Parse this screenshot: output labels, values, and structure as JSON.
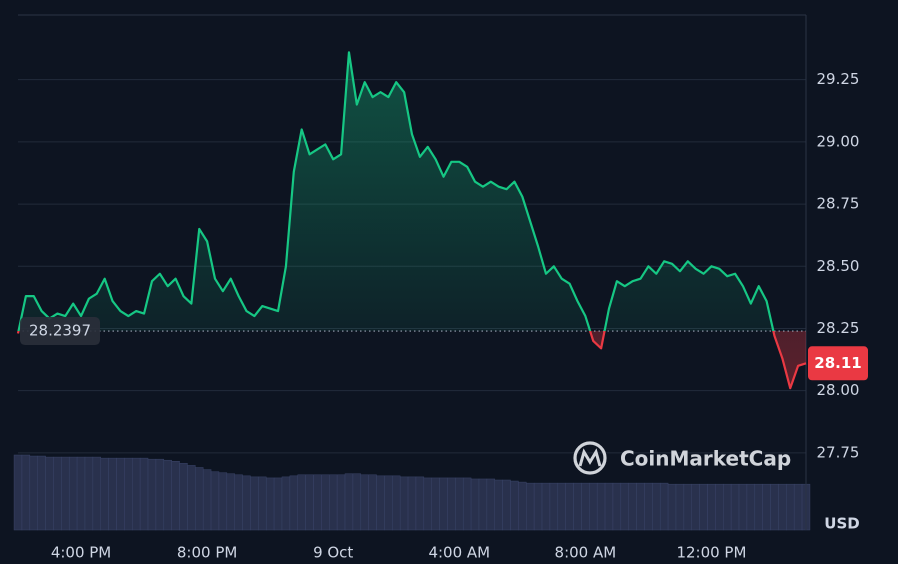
{
  "chart_data": {
    "type": "line",
    "categories": [
      null,
      null,
      null,
      null,
      null,
      null,
      null,
      null,
      "4:00 PM",
      null,
      null,
      null,
      null,
      null,
      null,
      null,
      null,
      null,
      null,
      null,
      null,
      null,
      null,
      null,
      "8:00 PM",
      null,
      null,
      null,
      null,
      null,
      null,
      null,
      null,
      null,
      null,
      null,
      null,
      null,
      null,
      null,
      "9 Oct",
      null,
      null,
      null,
      null,
      null,
      null,
      null,
      null,
      null,
      null,
      null,
      null,
      null,
      null,
      null,
      "4:00 AM",
      null,
      null,
      null,
      null,
      null,
      null,
      null,
      null,
      null,
      null,
      null,
      null,
      null,
      null,
      null,
      "8:00 AM",
      null,
      null,
      null,
      null,
      null,
      null,
      null,
      null,
      null,
      null,
      null,
      null,
      null,
      null,
      null,
      "12:00 PM",
      null,
      null,
      null,
      null,
      null,
      null,
      null,
      null,
      null,
      null,
      null,
      null
    ],
    "series": [
      {
        "color": "#16c784",
        "down_color": "#ea3943",
        "values": [
          28.23,
          28.38,
          28.38,
          28.32,
          28.29,
          28.31,
          28.3,
          28.35,
          28.3,
          28.37,
          28.39,
          28.45,
          28.36,
          28.32,
          28.3,
          28.32,
          28.31,
          28.44,
          28.47,
          28.42,
          28.45,
          28.38,
          28.35,
          28.65,
          28.6,
          28.45,
          28.4,
          28.45,
          28.38,
          28.32,
          28.3,
          28.34,
          28.33,
          28.32,
          28.5,
          28.88,
          29.05,
          28.95,
          28.97,
          28.99,
          28.93,
          28.95,
          29.36,
          29.15,
          29.24,
          29.18,
          29.2,
          29.18,
          29.24,
          29.2,
          29.03,
          28.94,
          28.98,
          28.93,
          28.86,
          28.92,
          28.92,
          28.9,
          28.84,
          28.82,
          28.84,
          28.82,
          28.81,
          28.84,
          28.78,
          28.68,
          28.58,
          28.47,
          28.5,
          28.45,
          28.43,
          28.36,
          28.3,
          28.2,
          28.17,
          28.33,
          28.44,
          28.42,
          28.44,
          28.45,
          28.5,
          28.47,
          28.52,
          28.51,
          28.48,
          28.52,
          28.49,
          28.47,
          28.5,
          28.49,
          28.46,
          28.47,
          28.42,
          28.35,
          28.42,
          28.36,
          28.22,
          28.13,
          28.01,
          28.1,
          28.11
        ]
      }
    ],
    "volume": [
      72,
      72,
      71,
      71,
      70,
      70,
      70,
      70,
      70,
      70,
      70,
      69,
      69,
      69,
      69,
      69,
      69,
      68,
      68,
      67,
      66,
      64,
      62,
      60,
      58,
      56,
      55,
      54,
      53,
      52,
      51,
      51,
      50,
      50,
      51,
      52,
      53,
      53,
      53,
      53,
      53,
      53,
      54,
      54,
      53,
      53,
      52,
      52,
      52,
      51,
      51,
      51,
      50,
      50,
      50,
      50,
      50,
      50,
      49,
      49,
      49,
      48,
      48,
      47,
      46,
      45,
      45,
      45,
      45,
      45,
      45,
      45,
      45,
      45,
      45,
      45,
      45,
      45,
      45,
      45,
      45,
      45,
      45,
      44,
      44,
      44,
      44,
      44,
      44,
      44,
      44,
      44,
      44,
      44,
      44,
      44,
      44,
      44,
      44,
      44,
      44
    ],
    "baseline": 28.2397,
    "ylim": [
      27.44,
      29.51
    ],
    "yticks": [
      27.75,
      {
        "value": 28,
        "label": "28.00"
      },
      28.25,
      {
        "value": 28.5,
        "label": "28.50"
      },
      28.75,
      {
        "value": 29,
        "label": "29.00"
      },
      29.25
    ],
    "grid": true,
    "unit": "USD",
    "watermark": "CoinMarketCap"
  }
}
